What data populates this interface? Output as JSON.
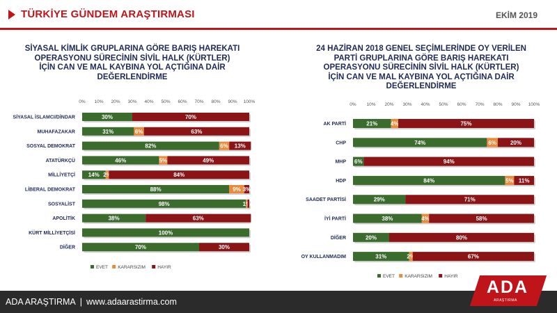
{
  "header": {
    "title": "TÜRKİYE GÜNDEM ARAŞTIRMASI",
    "date": "EKİM 2019"
  },
  "footer": {
    "company": "ADA ARAŞTIRMA",
    "separator": "|",
    "url": "www.adaarastirma.com"
  },
  "logo": {
    "text": "ADA",
    "subtext": "ARAŞTIRMA"
  },
  "colors": {
    "evet": "#3b6b2d",
    "kararsizim": "#ec8a3c",
    "hayir": "#8b1416",
    "accent": "#c0141b",
    "title": "#1f2a57"
  },
  "chart_data": [
    {
      "type": "bar",
      "orientation": "horizontal",
      "stacked": true,
      "title_lines": [
        "SİYASAL KİMLİK GRUPLARINA GÖRE BARIŞ HAREKATI",
        "OPERASYONU SÜRECİNİN SİVİL HALK (KÜRTLER)",
        "İÇİN CAN VE MAL KAYBINA YOL AÇTIĞINA DAİR",
        "DEĞERLENDİRME"
      ],
      "xlim": [
        0,
        100
      ],
      "ticks": [
        "0%",
        "10%",
        "20%",
        "30%",
        "40%",
        "50%",
        "60%",
        "70%",
        "80%",
        "90%",
        "100%"
      ],
      "categories": [
        "SİYASAL İSLAMCI/DİNDAR",
        "MUHAFAZAKAR",
        "SOSYAL DEMOKRAT",
        "ATATÜRKÇÜ",
        "MİLLİYETÇİ",
        "LİBERAL DEMOKRAT",
        "SOSYALİST",
        "APOLİTİK",
        "KÜRT MİLLİYETÇİSİ",
        "DİĞER"
      ],
      "series": [
        {
          "name": "EVET",
          "values": [
            30,
            31,
            82,
            46,
            14,
            88,
            98,
            38,
            100,
            70
          ],
          "labels": [
            "30%",
            "31%",
            "82%",
            "46%",
            "14%",
            "88%",
            "98%",
            "38%",
            "100%",
            "70%"
          ]
        },
        {
          "name": "KARARSIZIM",
          "values": [
            0,
            6,
            6,
            5,
            2,
            9,
            1,
            0,
            0,
            0
          ],
          "labels": [
            "",
            "6%",
            "6%",
            "5%",
            "2%",
            "9%",
            "1%",
            "",
            "",
            ""
          ]
        },
        {
          "name": "HAYIR",
          "values": [
            70,
            63,
            13,
            49,
            84,
            3,
            1,
            63,
            0,
            30
          ],
          "labels": [
            "70%",
            "63%",
            "13%",
            "49%",
            "84%",
            "3%",
            "",
            "63%",
            "",
            "30%"
          ]
        }
      ],
      "legend": "bottom"
    },
    {
      "type": "bar",
      "orientation": "horizontal",
      "stacked": true,
      "title_lines": [
        "24 HAZİRAN 2018 GENEL SEÇİMLERİNDE OY VERİLEN",
        "PARTİ GRUPLARINA GÖRE BARIŞ HAREKATI",
        "OPERASYONU SÜRECİNİN SİVİL HALK (KÜRTLER)",
        "İÇİN CAN VE MAL KAYBINA YOL AÇTIĞINA DAİR",
        "DEĞERLENDİRME"
      ],
      "xlim": [
        0,
        100
      ],
      "ticks": [
        "0%",
        "10%",
        "20%",
        "30%",
        "40%",
        "50%",
        "60%",
        "70%",
        "80%",
        "90%",
        "100%"
      ],
      "categories": [
        "AK PARTİ",
        "CHP",
        "MHP",
        "HDP",
        "SAADET PARTİSİ",
        "İYİ PARTİ",
        "DİĞER",
        "OY KULLANMADIM"
      ],
      "series": [
        {
          "name": "EVET",
          "values": [
            21,
            74,
            6,
            84,
            29,
            38,
            20,
            31
          ],
          "labels": [
            "21%",
            "74%",
            "6%",
            "84%",
            "29%",
            "38%",
            "20%",
            "31%"
          ]
        },
        {
          "name": "KARARSIZIM",
          "values": [
            4,
            6,
            0,
            5,
            0,
            4,
            0,
            2
          ],
          "labels": [
            "4%",
            "6%",
            "",
            "5%",
            "",
            "4%",
            "",
            "2%"
          ]
        },
        {
          "name": "HAYIR",
          "values": [
            75,
            20,
            94,
            11,
            71,
            58,
            80,
            67
          ],
          "labels": [
            "75%",
            "20%",
            "94%",
            "11%",
            "71%",
            "58%",
            "80%",
            "67%"
          ]
        }
      ],
      "legend": "bottom"
    }
  ]
}
